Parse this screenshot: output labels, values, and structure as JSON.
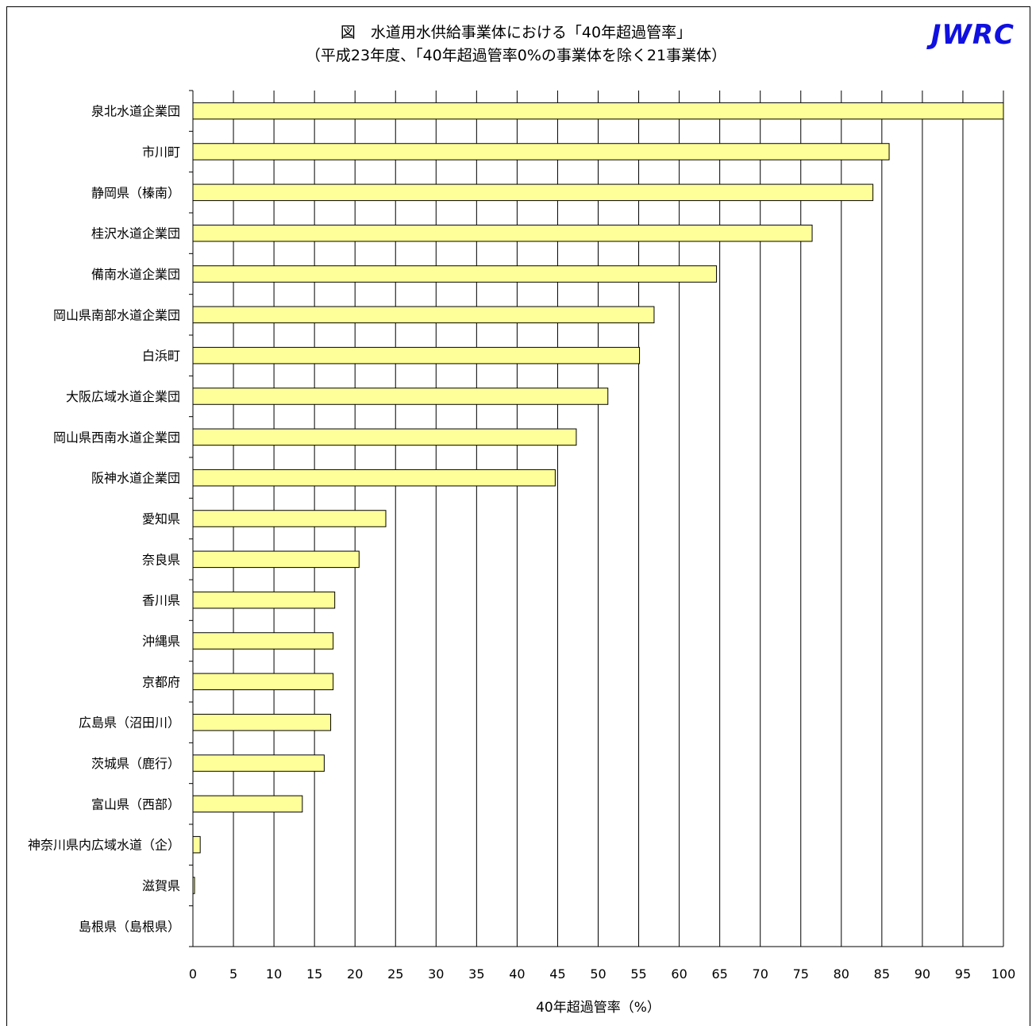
{
  "title_line1": "図　水道用水供給事業体における「40年超過管率」",
  "title_line2": "（平成23年度、「40年超過管率0%の事業体を除く21事業体）",
  "logo_text": "JWRC",
  "colors": {
    "bar_fill": "#FFFF99",
    "bar_stroke": "#000000",
    "logo": "#1010E0",
    "grid": "#000000"
  },
  "chart_data": {
    "type": "bar",
    "orientation": "horizontal",
    "xlabel": "40年超過管率（%）",
    "ylabel": "",
    "xlim": [
      0,
      100
    ],
    "ticks": [
      0,
      5,
      10,
      15,
      20,
      25,
      30,
      35,
      40,
      45,
      50,
      55,
      60,
      65,
      70,
      75,
      80,
      85,
      90,
      95,
      100
    ],
    "grid": "vertical",
    "categories": [
      "泉北水道企業団",
      "市川町",
      "静岡県（榛南）",
      "桂沢水道企業団",
      "備南水道企業団",
      "岡山県南部水道企業団",
      "白浜町",
      "大阪広域水道企業団",
      "岡山県西南水道企業団",
      "阪神水道企業団",
      "愛知県",
      "奈良県",
      "香川県",
      "沖縄県",
      "京都府",
      "広島県（沼田川）",
      "茨城県（鹿行）",
      "富山県（西部）",
      "神奈川県内広域水道（企）",
      "滋賀県",
      "島根県（島根県）"
    ],
    "values": [
      100,
      85.9,
      83.9,
      76.4,
      64.6,
      56.9,
      55.1,
      51.2,
      47.3,
      44.7,
      23.8,
      20.5,
      17.5,
      17.3,
      17.3,
      17.0,
      16.2,
      13.5,
      0.9,
      0.2,
      0.0
    ]
  }
}
